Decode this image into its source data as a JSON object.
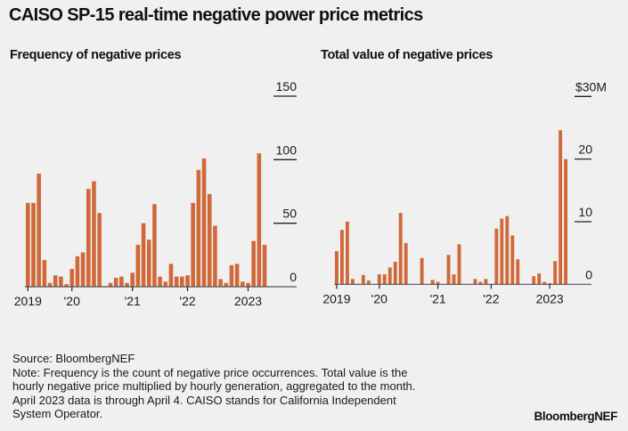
{
  "title": "CAISO SP-15 real-time negative power price metrics",
  "colors": {
    "bar": "#d0693a",
    "background": "#f0f0f0",
    "axis": "#555555",
    "text": "#111111"
  },
  "chart_data": [
    {
      "type": "bar",
      "title": "Frequency of negative prices",
      "xlabel": "",
      "ylabel": "",
      "ylim": [
        0,
        150
      ],
      "yticks": [
        0,
        50,
        100,
        150
      ],
      "ytick_labels": [
        "0",
        "50",
        "100",
        "150"
      ],
      "x_tick_labels": [
        {
          "label": "2019",
          "bar_index": 0
        },
        {
          "label": "'20",
          "bar_index": 8
        },
        {
          "label": "'21",
          "bar_index": 19
        },
        {
          "label": "'22",
          "bar_index": 29
        },
        {
          "label": "2023",
          "bar_index": 40
        }
      ],
      "grid": false,
      "legend": "none",
      "values": [
        66,
        66,
        89,
        21,
        3,
        9,
        8,
        2,
        14,
        24,
        27,
        77,
        83,
        58,
        0.5,
        3,
        7,
        8,
        3,
        11,
        33,
        50,
        37,
        65,
        8,
        4,
        18,
        8,
        8,
        9,
        66,
        92,
        101,
        73,
        48,
        6,
        3,
        17,
        18,
        4,
        3,
        36,
        105,
        33
      ]
    },
    {
      "type": "bar",
      "title": "Total value of negative prices",
      "xlabel": "",
      "ylabel": "",
      "ylim": [
        0,
        30
      ],
      "yticks": [
        0,
        10,
        20,
        30
      ],
      "ytick_labels": [
        "0",
        "10",
        "20",
        "$30M"
      ],
      "x_tick_labels": [
        {
          "label": "2019",
          "bar_index": 0
        },
        {
          "label": "'20",
          "bar_index": 8
        },
        {
          "label": "'21",
          "bar_index": 19
        },
        {
          "label": "'22",
          "bar_index": 29
        },
        {
          "label": "2023",
          "bar_index": 40
        }
      ],
      "grid": false,
      "legend": "none",
      "units": "$M",
      "values": [
        5.3,
        8.7,
        10.0,
        0.85,
        0.1,
        1.5,
        0.6,
        0,
        1.6,
        1.6,
        2.7,
        3.6,
        11.4,
        6.6,
        0,
        0,
        4.2,
        0,
        0.7,
        0.4,
        0,
        4.7,
        1.6,
        6.4,
        0,
        0,
        0.85,
        0.4,
        0.85,
        0,
        8.9,
        10.5,
        10.9,
        7.8,
        4.0,
        0,
        0,
        1.3,
        1.75,
        0.4,
        0.2,
        3.7,
        24.6,
        20.0
      ]
    }
  ],
  "footer": {
    "source": "Source: BloombergNEF",
    "note_lines": [
      "Note: Frequency is the count of negative price occurrences. Total value is the",
      "hourly negative price multiplied by hourly generation, aggregated to the month.",
      "April 2023 data is through April 4. CAISO stands for California Independent",
      "System Operator."
    ],
    "brand": "BloombergNEF"
  }
}
